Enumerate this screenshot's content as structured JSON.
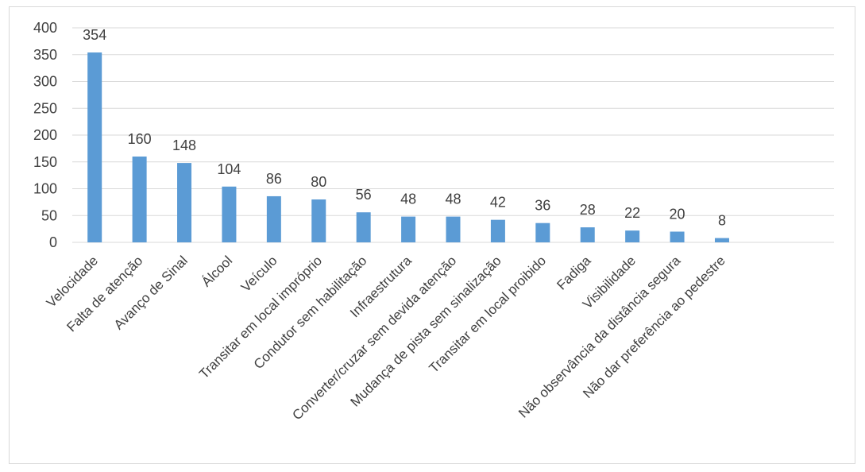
{
  "chart_data": {
    "type": "bar",
    "title": "",
    "xlabel": "",
    "ylabel": "",
    "categories": [
      "Velocidade",
      "Falta de atenção",
      "Avanço de Sinal",
      "Álcool",
      "Veículo",
      "Transitar em local impróprio",
      "Condutor sem habilitação",
      "Infraestrutura",
      "Converter/cruzar sem devida atenção",
      "Mudança de pista sem sinalização",
      "Transitar em local proibido",
      "Fadiga",
      "Visibilidade",
      "Não observância da distância segura",
      "Não dar preferência ao pedestre"
    ],
    "values": [
      354,
      160,
      148,
      104,
      86,
      80,
      56,
      48,
      48,
      42,
      36,
      28,
      22,
      20,
      8
    ],
    "data_labels": [
      "354",
      "160",
      "148",
      "104",
      "86",
      "80",
      "56",
      "48",
      "48",
      "42",
      "36",
      "28",
      "22",
      "20",
      "8"
    ],
    "yticks": [
      "0",
      "50",
      "100",
      "150",
      "200",
      "250",
      "300",
      "350",
      "400"
    ],
    "ylim": [
      0,
      400
    ],
    "grid": true,
    "legend": "none",
    "colors": {
      "bar": "#5b9bd5",
      "grid": "#d9d9d9",
      "text": "#404040",
      "frame": "#d9d9d9"
    }
  }
}
